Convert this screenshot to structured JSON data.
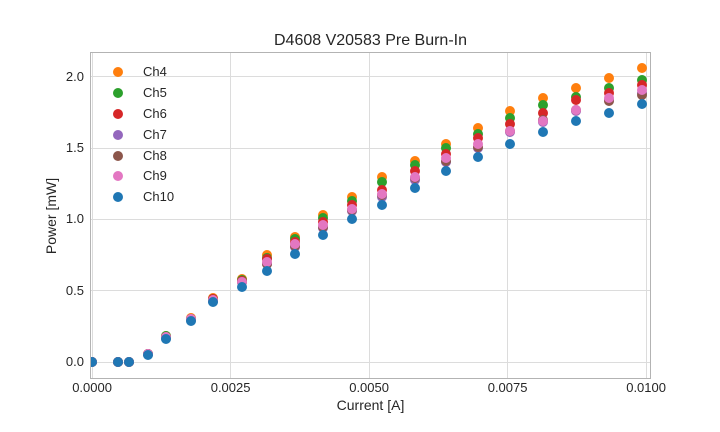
{
  "figure": {
    "title": "D4608 V20583 Pre Burn-In",
    "xlabel": "Current [A]",
    "ylabel": "Power [mW]"
  },
  "chart_data": {
    "type": "scatter",
    "title": "D4608 V20583 Pre Burn-In",
    "xlabel": "Current [A]",
    "ylabel": "Power [mW]",
    "grid": true,
    "legend_position": "upper-left",
    "marker_size_px": 10,
    "grid_color": "#dcdcdc",
    "spine_color": "#b3b3b3",
    "text_color": "#262626",
    "xlim": [
      -2e-05,
      0.01007
    ],
    "ylim": [
      -0.1115,
      2.1672
    ],
    "x_ticks": {
      "values": [
        0.0,
        0.0025,
        0.005,
        0.0075,
        0.01
      ],
      "labels": [
        "0.0000",
        "0.0025",
        "0.0050",
        "0.0075",
        "0.0100"
      ]
    },
    "y_ticks": {
      "values": [
        0.0,
        0.5,
        1.0,
        1.5,
        2.0
      ],
      "labels": [
        "0.0",
        "0.5",
        "1.0",
        "1.5",
        "2.0"
      ]
    },
    "x": [
      0.0,
      0.00046,
      0.00066,
      0.001,
      0.00134,
      0.00178,
      0.00218,
      0.0027,
      0.00315,
      0.00366,
      0.00417,
      0.0047,
      0.00524,
      0.00582,
      0.00639,
      0.00696,
      0.00754,
      0.00813,
      0.00874,
      0.00933,
      0.00992
    ],
    "series": [
      {
        "name": "Ch4",
        "color": "#ff7f0e",
        "values": [
          0.0,
          0.0,
          0.0,
          0.06,
          0.18,
          0.31,
          0.45,
          0.58,
          0.75,
          0.88,
          1.03,
          1.16,
          1.3,
          1.41,
          1.53,
          1.64,
          1.76,
          1.85,
          1.92,
          1.99,
          2.06
        ]
      },
      {
        "name": "Ch5",
        "color": "#2ca02c",
        "values": [
          0.0,
          0.0,
          0.0,
          0.06,
          0.18,
          0.305,
          0.445,
          0.575,
          0.73,
          0.86,
          1.01,
          1.13,
          1.26,
          1.38,
          1.5,
          1.6,
          1.71,
          1.8,
          1.86,
          1.92,
          1.98
        ]
      },
      {
        "name": "Ch6",
        "color": "#d62728",
        "values": [
          0.0,
          0.0,
          0.0,
          0.06,
          0.175,
          0.3,
          0.44,
          0.57,
          0.72,
          0.84,
          0.98,
          1.1,
          1.21,
          1.34,
          1.46,
          1.57,
          1.67,
          1.75,
          1.84,
          1.89,
          1.94
        ]
      },
      {
        "name": "Ch7",
        "color": "#9467bd",
        "values": [
          0.0,
          0.0,
          0.0,
          0.055,
          0.17,
          0.3,
          0.43,
          0.56,
          0.685,
          0.81,
          0.94,
          1.06,
          1.16,
          1.28,
          1.4,
          1.5,
          1.61,
          1.68,
          1.76,
          1.84,
          1.89
        ]
      },
      {
        "name": "Ch8",
        "color": "#8c564b",
        "values": [
          0.0,
          0.0,
          0.0,
          0.055,
          0.17,
          0.295,
          0.43,
          0.56,
          0.69,
          0.815,
          0.945,
          1.065,
          1.17,
          1.29,
          1.41,
          1.51,
          1.62,
          1.7,
          1.77,
          1.83,
          1.87
        ]
      },
      {
        "name": "Ch9",
        "color": "#e377c2",
        "values": [
          0.0,
          0.0,
          0.0,
          0.06,
          0.175,
          0.3,
          0.435,
          0.565,
          0.7,
          0.825,
          0.96,
          1.07,
          1.18,
          1.3,
          1.43,
          1.53,
          1.62,
          1.69,
          1.77,
          1.85,
          1.91
        ]
      },
      {
        "name": "Ch10",
        "color": "#1f77b4",
        "values": [
          0.0,
          0.0,
          0.0,
          0.05,
          0.165,
          0.29,
          0.42,
          0.53,
          0.64,
          0.76,
          0.89,
          1.0,
          1.1,
          1.22,
          1.34,
          1.44,
          1.53,
          1.61,
          1.69,
          1.75,
          1.81
        ]
      }
    ]
  }
}
